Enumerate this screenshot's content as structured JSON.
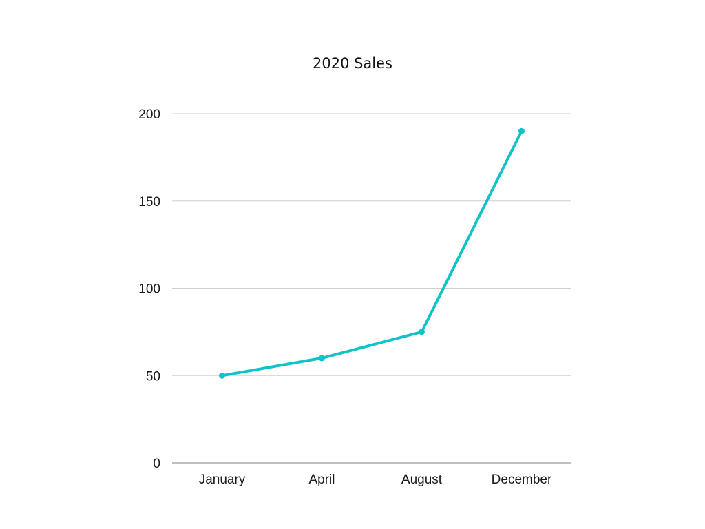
{
  "chart_data": {
    "type": "line",
    "title": "2020 Sales",
    "xlabel": "",
    "ylabel": "",
    "categories": [
      "January",
      "April",
      "August",
      "December"
    ],
    "series": [
      {
        "values": [
          50,
          60,
          75,
          190
        ],
        "color": "#12c2c9"
      }
    ],
    "ylim": [
      0,
      200
    ],
    "yticks": [
      0,
      50,
      100,
      150,
      200
    ],
    "grid": true,
    "legend": "none"
  }
}
